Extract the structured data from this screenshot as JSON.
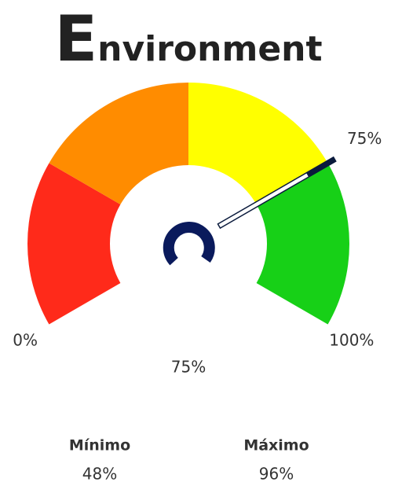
{
  "chart_data": {
    "type": "gauge",
    "title": "Environment",
    "values": [
      75
    ],
    "value_labels": [
      "75%"
    ],
    "ylim": [
      0,
      100
    ],
    "yticks": [
      {
        "value": 0,
        "label": "0%"
      },
      {
        "value": 100,
        "label": "100%"
      }
    ],
    "bands": [
      {
        "from": 0,
        "to": 25,
        "color": "#ff2a1a"
      },
      {
        "from": 25,
        "to": 50,
        "color": "#ff8c00"
      },
      {
        "from": 50,
        "to": 75,
        "color": "#ffff00"
      },
      {
        "from": 75,
        "to": 100,
        "color": "#17d017"
      }
    ],
    "summary": [
      {
        "name": "Mínimo",
        "label": "48%"
      },
      {
        "name": "Máximo",
        "label": "96%"
      }
    ]
  }
}
